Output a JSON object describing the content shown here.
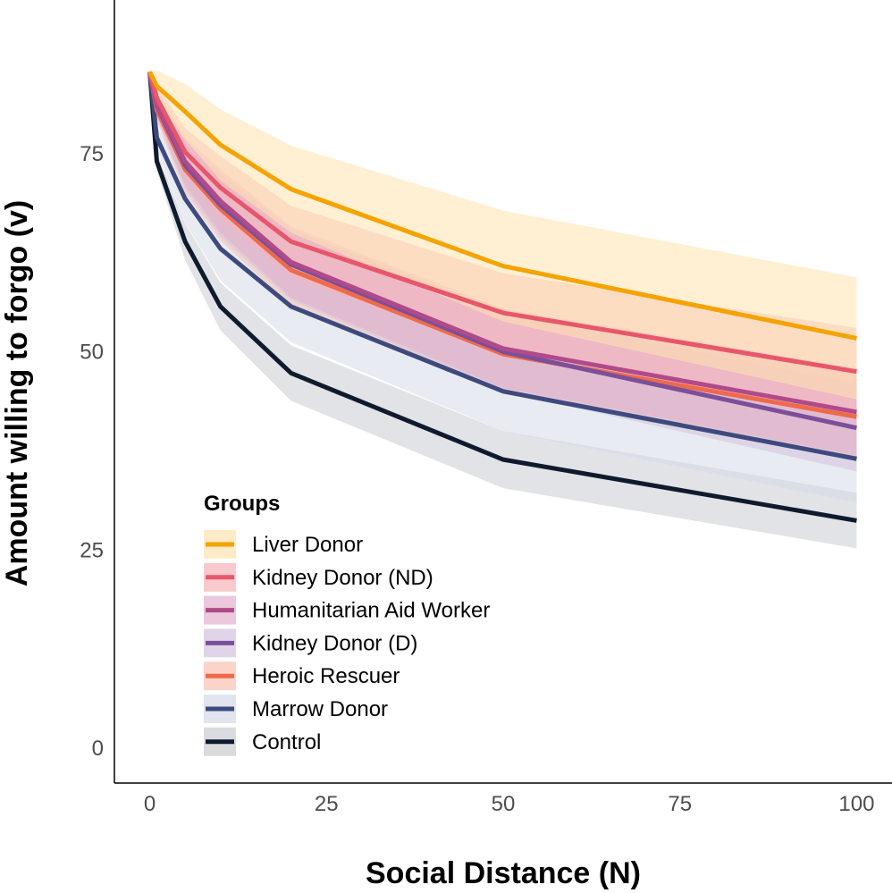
{
  "chart_data": {
    "type": "line",
    "xlabel": "Social Distance (N)",
    "ylabel": "Amount willing to forgo (v)",
    "xlim": [
      -5,
      105
    ],
    "ylim": [
      0,
      94.4
    ],
    "x_ticks": [
      0,
      25,
      50,
      75,
      100
    ],
    "y_ticks": [
      0,
      25,
      50,
      75
    ],
    "grid": false,
    "legend": {
      "title": "Groups",
      "placement": "bottom-left"
    },
    "x": [
      0,
      1,
      5,
      10,
      20,
      50,
      100
    ],
    "series": [
      {
        "name": "Liver Donor",
        "color": "#F5A300",
        "ribbon": "#FFE3B0",
        "values": [
          85.3,
          83.5,
          80.3,
          76.1,
          70.5,
          60.8,
          51.7
        ],
        "lower": [
          85.3,
          81.5,
          76.8,
          71.6,
          65,
          53.8,
          44
        ],
        "upper": [
          85.3,
          85.5,
          83.8,
          80.6,
          76,
          67.8,
          59.4
        ]
      },
      {
        "name": "Kidney Donor (ND)",
        "color": "#E8566B",
        "ribbon": "#F7B3B8",
        "values": [
          85.3,
          82,
          75.2,
          70.7,
          63.9,
          54.9,
          47.5
        ],
        "lower": [
          85.3,
          80.5,
          72.2,
          66.7,
          59.4,
          49.9,
          42
        ],
        "upper": [
          85.3,
          83.5,
          78.2,
          74.7,
          68.4,
          59.9,
          53
        ]
      },
      {
        "name": "Humanitarian Aid Worker",
        "color": "#B04A8A",
        "ribbon": "#E2B0CC",
        "values": [
          85.3,
          81,
          74,
          69,
          61.3,
          50.4,
          42.4
        ],
        "lower": [
          85.3,
          79.5,
          71,
          65,
          56.8,
          45.4,
          36.9
        ],
        "upper": [
          85.3,
          82.5,
          77,
          73,
          65.8,
          55.4,
          47.9
        ]
      },
      {
        "name": "Kidney Donor (D)",
        "color": "#7B4F9A",
        "ribbon": "#D3C3DE",
        "values": [
          85.3,
          81,
          73.5,
          68.5,
          61,
          50,
          40.4
        ],
        "lower": [
          85.3,
          79.5,
          70.5,
          64.5,
          56.5,
          45,
          34.9
        ],
        "upper": [
          85.3,
          82.5,
          76.5,
          72.5,
          65.5,
          55,
          45.9
        ]
      },
      {
        "name": "Heroic Rescuer",
        "color": "#EE6A4A",
        "ribbon": "#F8C2B2",
        "values": [
          85.3,
          80.5,
          73,
          68,
          60.3,
          49.7,
          41.8
        ],
        "lower": [
          85.3,
          79,
          70,
          64,
          55.8,
          44.7,
          36.3
        ],
        "upper": [
          85.3,
          82,
          76,
          72,
          64.8,
          54.7,
          47.3
        ]
      },
      {
        "name": "Marrow Donor",
        "color": "#3E4A7E",
        "ribbon": "#D5DAE8",
        "values": [
          85.3,
          77,
          69.3,
          63,
          55.7,
          45,
          36.5
        ],
        "lower": [
          85.3,
          75.5,
          66.3,
          59,
          51.2,
          40,
          31
        ],
        "upper": [
          85.3,
          78.5,
          72.3,
          67,
          60.2,
          50,
          42
        ]
      },
      {
        "name": "Control",
        "color": "#0F1A2E",
        "ribbon": "#C9CCD2",
        "values": [
          85.3,
          74,
          63.9,
          55.7,
          47.3,
          36.4,
          28.7
        ],
        "lower": [
          85.3,
          72.8,
          61.6,
          52.7,
          43.8,
          32.8,
          25.2
        ],
        "upper": [
          85.3,
          75.2,
          66.2,
          58.7,
          50.8,
          40,
          32.2
        ]
      }
    ]
  }
}
